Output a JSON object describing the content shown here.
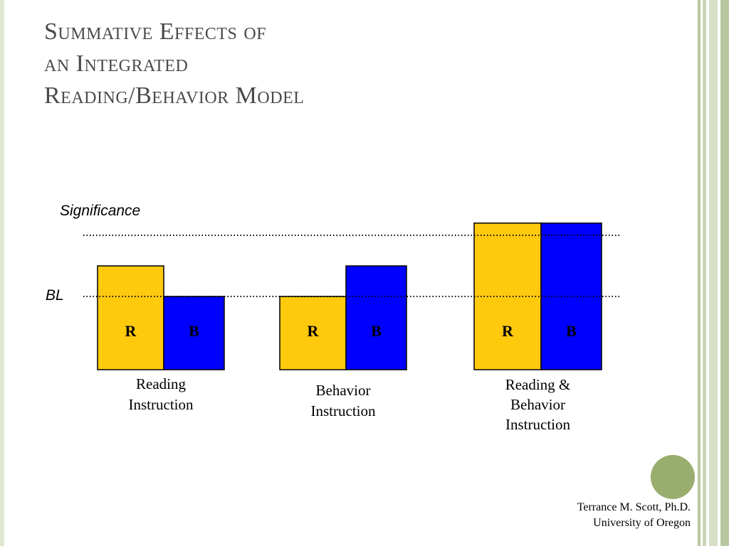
{
  "slide": {
    "title_lines": [
      "Summative Effects of",
      "an Integrated",
      "Reading/Behavior Model"
    ],
    "footer": {
      "author": "Terrance M. Scott, Ph.D.",
      "affiliation": "University of Oregon"
    },
    "colors": {
      "accent_green": "#98ad6e",
      "stripe": "#b9c7a0",
      "title": "#4a4a4a"
    }
  },
  "chart_data": {
    "type": "bar",
    "levels": {
      "BL": 1,
      "Significance": 2
    },
    "reference_lines": [
      {
        "name": "Significance",
        "value": 2,
        "style": "dotted"
      },
      {
        "name": "BL",
        "value": 1,
        "style": "dotted"
      }
    ],
    "groups": [
      {
        "label_lines": [
          "Reading",
          "Instruction"
        ],
        "bars": [
          {
            "label": "R",
            "value": 1.5
          },
          {
            "label": "B",
            "value": 1.0
          }
        ]
      },
      {
        "label_lines": [
          "Behavior",
          "Instruction"
        ],
        "bars": [
          {
            "label": "R",
            "value": 1.0
          },
          {
            "label": "B",
            "value": 1.5
          }
        ]
      },
      {
        "label_lines": [
          "Reading &",
          "Behavior",
          "Instruction"
        ],
        "bars": [
          {
            "label": "R",
            "value": 2.2
          },
          {
            "label": "B",
            "value": 2.2
          }
        ]
      }
    ],
    "series_colors": {
      "R": "#ffc90e",
      "B": "#0000ff"
    },
    "grid": false
  }
}
